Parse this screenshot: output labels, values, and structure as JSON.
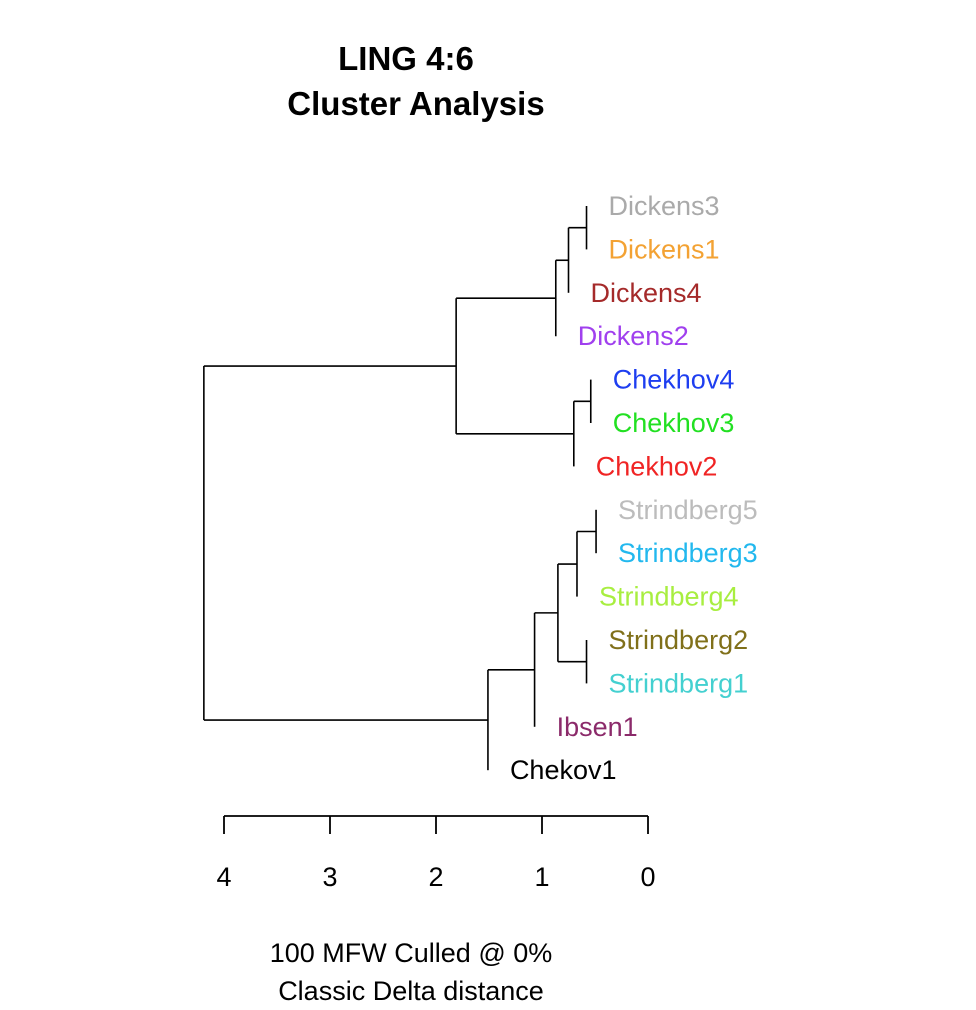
{
  "chart_data": {
    "type": "dendrogram",
    "title": [
      "LING 4:6",
      "Cluster Analysis"
    ],
    "subtitle": [
      "100 MFW  Culled @ 0%",
      "Classic Delta distance"
    ],
    "axis": {
      "ticks": [
        4,
        3,
        2,
        1,
        0
      ],
      "range": [
        4,
        0
      ]
    },
    "leaves": [
      {
        "name": "Dickens3",
        "color": "#aaaaaa"
      },
      {
        "name": "Dickens1",
        "color": "#f3a233"
      },
      {
        "name": "Dickens4",
        "color": "#a52a2a"
      },
      {
        "name": "Dickens2",
        "color": "#a040ee"
      },
      {
        "name": "Chekhov4",
        "color": "#1e3ef0"
      },
      {
        "name": "Chekhov3",
        "color": "#22e022"
      },
      {
        "name": "Chekhov2",
        "color": "#f02424"
      },
      {
        "name": "Strindberg5",
        "color": "#bcbcbc"
      },
      {
        "name": "Strindberg3",
        "color": "#22b8ee"
      },
      {
        "name": "Strindberg4",
        "color": "#a8ee40"
      },
      {
        "name": "Strindberg2",
        "color": "#80701a"
      },
      {
        "name": "Strindberg1",
        "color": "#44d0d0"
      },
      {
        "name": "Ibsen1",
        "color": "#8b2a6a"
      },
      {
        "name": "Chekov1",
        "color": "#000000"
      }
    ],
    "merges": [
      {
        "id": "m1",
        "left": "leaf:0",
        "right": "leaf:1",
        "height": 0.58
      },
      {
        "id": "m2",
        "left": "node:m1",
        "right": "leaf:2",
        "height": 0.75
      },
      {
        "id": "m3",
        "left": "node:m2",
        "right": "leaf:3",
        "height": 0.87
      },
      {
        "id": "m4",
        "left": "leaf:4",
        "right": "leaf:5",
        "height": 0.54
      },
      {
        "id": "m5",
        "left": "node:m4",
        "right": "leaf:6",
        "height": 0.7
      },
      {
        "id": "m6",
        "left": "node:m3",
        "right": "node:m5",
        "height": 1.81
      },
      {
        "id": "m7",
        "left": "leaf:7",
        "right": "leaf:8",
        "height": 0.49
      },
      {
        "id": "m8",
        "left": "node:m7",
        "right": "leaf:9",
        "height": 0.67
      },
      {
        "id": "m9",
        "left": "leaf:10",
        "right": "leaf:11",
        "height": 0.58
      },
      {
        "id": "m10",
        "left": "node:m8",
        "right": "node:m9",
        "height": 0.85
      },
      {
        "id": "m11",
        "left": "node:m10",
        "right": "leaf:12",
        "height": 1.07
      },
      {
        "id": "m12",
        "left": "node:m11",
        "right": "leaf:13",
        "height": 1.51
      },
      {
        "id": "m13",
        "left": "node:m6",
        "right": "node:m12",
        "height": 4.19
      }
    ]
  }
}
